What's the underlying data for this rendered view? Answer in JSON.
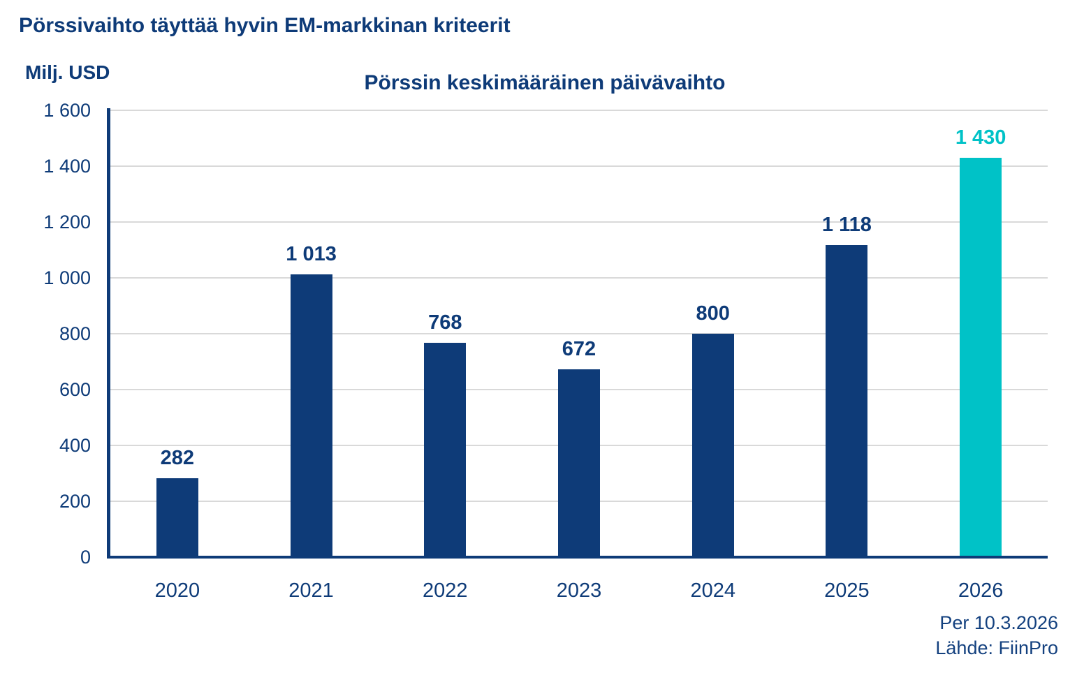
{
  "page": {
    "title": "Pörssivaihto täyttää hyvin EM-markkinan kriteerit"
  },
  "chart": {
    "footnote": {
      "date": "Per 10.3.2026",
      "source": "Lähde: FiinPro"
    }
  },
  "colors": {
    "navy": "#0e3b78",
    "teal": "#00c2c7",
    "gridline": "#d9d9d9",
    "background": "#ffffff"
  },
  "chart_data": {
    "type": "bar",
    "title": "Pörssin keskimääräinen päivävaihto",
    "ylabel": "Milj. USD",
    "xlabel": "",
    "categories": [
      "2020",
      "2021",
      "2022",
      "2023",
      "2024",
      "2025",
      "2026"
    ],
    "values": [
      282,
      1013,
      768,
      672,
      800,
      1118,
      1430
    ],
    "value_labels": [
      "282",
      "1 013",
      "768",
      "672",
      "800",
      "1 118",
      "1 430"
    ],
    "highlight_index": 6,
    "ylim": [
      0,
      1600
    ],
    "yticks": [
      0,
      200,
      400,
      600,
      800,
      1000,
      1200,
      1400,
      1600
    ],
    "ytick_labels": [
      "0",
      "200",
      "400",
      "600",
      "800",
      "1 000",
      "1 200",
      "1 400",
      "1 600"
    ],
    "grid": "horizontal",
    "legend": "none"
  }
}
